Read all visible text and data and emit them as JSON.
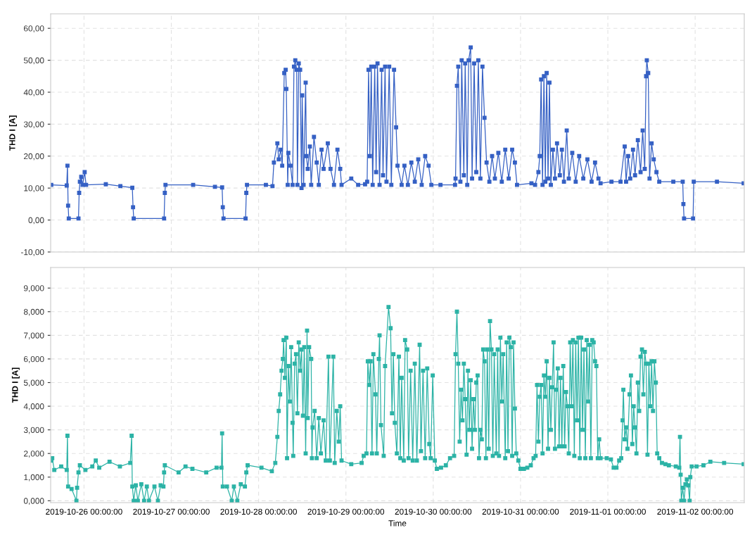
{
  "chart_data": [
    {
      "type": "line",
      "ylabel": "THD I [A]",
      "xlim": [
        "2019-10-25T14:50",
        "2019-11-02T13:30"
      ],
      "ylim": [
        -10,
        64.5
      ],
      "yticks": [
        {
          "value": -10,
          "label": "-10,00"
        },
        {
          "value": 0,
          "label": "0,00"
        },
        {
          "value": 10,
          "label": "10,00"
        },
        {
          "value": 20,
          "label": "20,00"
        },
        {
          "value": 30,
          "label": "30,00"
        },
        {
          "value": 40,
          "label": "40,00"
        },
        {
          "value": 50,
          "label": "50,00"
        },
        {
          "value": 60,
          "label": "60,00"
        }
      ],
      "xticks": [
        {
          "value": "2019-10-26",
          "label": null
        },
        {
          "value": "2019-10-27",
          "label": null
        },
        {
          "value": "2019-10-28",
          "label": null
        },
        {
          "value": "2019-10-29",
          "label": null
        },
        {
          "value": "2019-10-30",
          "label": null
        },
        {
          "value": "2019-10-31",
          "label": null
        },
        {
          "value": "2019-11-01",
          "label": null
        },
        {
          "value": "2019-11-02",
          "label": null
        }
      ],
      "tick_labels": "y",
      "grid": true,
      "marker": "square",
      "line_style": "solid",
      "series": [
        {
          "color": "#3560c4",
          "x": [
            "2019-10-25T15:00",
            "2019-10-25T19:15",
            "2019-10-25T19:27",
            "2019-10-25T19:38",
            "2019-10-25T19:49",
            "2019-10-25T22:29",
            "2019-10-25T22:40",
            "2019-10-25T22:52",
            "2019-10-25T23:14",
            "2019-10-25T23:37",
            "2019-10-26T00:11",
            "2019-10-26T00:34",
            "2019-10-26T06:00",
            "2019-10-26T10:00",
            "2019-10-26T13:17",
            "2019-10-26T13:29",
            "2019-10-26T13:40",
            "2019-10-26T22:01",
            "2019-10-26T22:13",
            "2019-10-26T22:24",
            "2019-10-27T06:00",
            "2019-10-27T12:00",
            "2019-10-27T13:58",
            "2019-10-27T14:09",
            "2019-10-27T14:21",
            "2019-10-27T20:25",
            "2019-10-27T20:37",
            "2019-10-27T20:48",
            "2019-10-28T02:00",
            "2019-10-28T03:49",
            "2019-10-28T04:12",
            "2019-10-28T05:09",
            "2019-10-28T05:32",
            "2019-10-28T06:06",
            "2019-10-28T06:29",
            "2019-10-28T07:03",
            "2019-10-28T07:26",
            "2019-10-28T07:37",
            "2019-10-28T08:00",
            "2019-10-28T08:11",
            "2019-10-28T08:46",
            "2019-10-28T09:20",
            "2019-10-28T09:43",
            "2019-10-28T10:05",
            "2019-10-28T10:28",
            "2019-10-28T10:40",
            "2019-10-28T11:02",
            "2019-10-28T11:25",
            "2019-10-28T11:48",
            "2019-10-28T11:59",
            "2019-10-28T12:22",
            "2019-10-28T12:56",
            "2019-10-28T13:08",
            "2019-10-28T13:30",
            "2019-10-28T14:05",
            "2019-10-28T14:27",
            "2019-10-28T15:13",
            "2019-10-28T15:58",
            "2019-10-28T16:33",
            "2019-10-28T17:18",
            "2019-10-28T17:52",
            "2019-10-28T19:01",
            "2019-10-28T19:46",
            "2019-10-28T20:43",
            "2019-10-28T21:40",
            "2019-10-28T22:26",
            "2019-10-28T22:48",
            "2019-10-29T01:28",
            "2019-10-29T03:22",
            "2019-10-29T05:16",
            "2019-10-29T05:50",
            "2019-10-29T06:13",
            "2019-10-29T06:35",
            "2019-10-29T06:58",
            "2019-10-29T07:21",
            "2019-10-29T07:55",
            "2019-10-29T08:18",
            "2019-10-29T08:41",
            "2019-10-29T09:15",
            "2019-10-29T09:49",
            "2019-10-29T10:12",
            "2019-10-29T10:46",
            "2019-10-29T11:09",
            "2019-10-29T11:54",
            "2019-10-29T12:29",
            "2019-10-29T13:14",
            "2019-10-29T13:48",
            "2019-10-29T14:11",
            "2019-10-29T15:19",
            "2019-10-29T16:05",
            "2019-10-29T17:02",
            "2019-10-29T17:59",
            "2019-10-29T18:56",
            "2019-10-29T19:53",
            "2019-10-29T20:50",
            "2019-10-29T21:47",
            "2019-10-29T22:44",
            "2019-10-29T23:29",
            "2019-10-30T02:00",
            "2019-10-30T06:00",
            "2019-10-30T06:08",
            "2019-10-30T06:31",
            "2019-10-30T06:53",
            "2019-10-30T07:28",
            "2019-10-30T07:50",
            "2019-10-30T08:25",
            "2019-10-30T08:47",
            "2019-10-30T09:21",
            "2019-10-30T09:44",
            "2019-10-30T10:18",
            "2019-10-30T10:41",
            "2019-10-30T11:15",
            "2019-10-30T11:50",
            "2019-10-30T12:24",
            "2019-10-30T12:58",
            "2019-10-30T13:32",
            "2019-10-30T14:06",
            "2019-10-30T14:40",
            "2019-10-30T15:26",
            "2019-10-30T16:11",
            "2019-10-30T16:57",
            "2019-10-30T17:54",
            "2019-10-30T18:51",
            "2019-10-30T19:48",
            "2019-10-30T20:45",
            "2019-10-30T21:42",
            "2019-10-30T22:27",
            "2019-10-30T23:02",
            "2019-10-31T03:00",
            "2019-10-31T04:00",
            "2019-10-31T04:55",
            "2019-10-31T05:17",
            "2019-10-31T05:40",
            "2019-10-31T06:03",
            "2019-10-31T06:26",
            "2019-10-31T06:49",
            "2019-10-31T07:11",
            "2019-10-31T07:34",
            "2019-10-31T07:57",
            "2019-10-31T08:20",
            "2019-10-31T08:54",
            "2019-10-31T09:28",
            "2019-10-31T10:02",
            "2019-10-31T10:48",
            "2019-10-31T11:22",
            "2019-10-31T11:56",
            "2019-10-31T12:42",
            "2019-10-31T13:16",
            "2019-10-31T14:13",
            "2019-10-31T15:10",
            "2019-10-31T16:07",
            "2019-10-31T17:15",
            "2019-10-31T18:23",
            "2019-10-31T19:32",
            "2019-10-31T20:29",
            "2019-10-31T21:25",
            "2019-10-31T22:00",
            "2019-11-01T01:00",
            "2019-11-01T03:30",
            "2019-11-01T04:38",
            "2019-11-01T05:01",
            "2019-11-01T05:35",
            "2019-11-01T06:09",
            "2019-11-01T06:55",
            "2019-11-01T07:29",
            "2019-11-01T08:15",
            "2019-11-01T09:00",
            "2019-11-01T09:34",
            "2019-11-01T10:09",
            "2019-11-01T10:31",
            "2019-11-01T10:43",
            "2019-11-01T11:06",
            "2019-11-01T11:28",
            "2019-11-01T12:02",
            "2019-11-01T12:37",
            "2019-11-01T13:22",
            "2019-11-01T14:08",
            "2019-11-01T18:00",
            "2019-11-01T20:35",
            "2019-11-01T20:46",
            "2019-11-01T20:57",
            "2019-11-01T23:26",
            "2019-11-01T23:37",
            "2019-11-02T06:00",
            "2019-11-02T13:20"
          ],
          "values": [
            11,
            10.8,
            17,
            4.5,
            0.5,
            0.5,
            8.5,
            12,
            13.5,
            11,
            15,
            11,
            11.2,
            10.6,
            10.1,
            4,
            0.5,
            0.5,
            8.5,
            11,
            11,
            10.4,
            10.2,
            4,
            0.5,
            0.5,
            8.5,
            11,
            11,
            10.6,
            18,
            24,
            19,
            22,
            17,
            46,
            47,
            41,
            11,
            21,
            17,
            11,
            48,
            50,
            47,
            11,
            49,
            47,
            10,
            39,
            11,
            43,
            20,
            16,
            23,
            11,
            26,
            18,
            11,
            22,
            16,
            24,
            16,
            11,
            22,
            16,
            11,
            13,
            11,
            11.2,
            12,
            47,
            20,
            48,
            11,
            48,
            15,
            49,
            11,
            47,
            14,
            48,
            12,
            48,
            11,
            47,
            29,
            17,
            11,
            17,
            11,
            18,
            12,
            19,
            11,
            20,
            17,
            11,
            11,
            11,
            13,
            42,
            48,
            12,
            50,
            14,
            49,
            11,
            50,
            54,
            13,
            49,
            15,
            50,
            13,
            48,
            32,
            18,
            12,
            20,
            13,
            21,
            12,
            22,
            13,
            22,
            18,
            11,
            11.5,
            11,
            15,
            20,
            44,
            11,
            45,
            12,
            46,
            13,
            43,
            11,
            22,
            13,
            24,
            14,
            22,
            12,
            28,
            13,
            21,
            12,
            20,
            13,
            19,
            12,
            18,
            13,
            11.5,
            12,
            12,
            23,
            12,
            20,
            13,
            22,
            14,
            25,
            15,
            28,
            16,
            45,
            50,
            46,
            13,
            24,
            19,
            15,
            12,
            12,
            12,
            5,
            0.5,
            0.5,
            12,
            12,
            11.5
          ]
        }
      ]
    },
    {
      "type": "line",
      "ylabel": "THD I [A]",
      "xlabel": "Time",
      "xlim": [
        "2019-10-25T14:50",
        "2019-11-02T13:30"
      ],
      "ylim": [
        -0.08,
        9.87
      ],
      "yticks": [
        {
          "value": 0,
          "label": "0,000"
        },
        {
          "value": 1,
          "label": "1,000"
        },
        {
          "value": 2,
          "label": "2,000"
        },
        {
          "value": 3,
          "label": "3,000"
        },
        {
          "value": 4,
          "label": "4,000"
        },
        {
          "value": 5,
          "label": "5,000"
        },
        {
          "value": 6,
          "label": "6,000"
        },
        {
          "value": 7,
          "label": "7,000"
        },
        {
          "value": 8,
          "label": "8,000"
        },
        {
          "value": 9,
          "label": "9,000"
        }
      ],
      "xticks": [
        {
          "value": "2019-10-26",
          "label": "2019-10-26 00:00:00"
        },
        {
          "value": "2019-10-27",
          "label": "2019-10-27 00:00:00"
        },
        {
          "value": "2019-10-28",
          "label": "2019-10-28 00:00:00"
        },
        {
          "value": "2019-10-29",
          "label": "2019-10-29 00:00:00"
        },
        {
          "value": "2019-10-30",
          "label": "2019-10-30 00:00:00"
        },
        {
          "value": "2019-10-31",
          "label": "2019-10-31 00:00:00"
        },
        {
          "value": "2019-11-01",
          "label": "2019-11-01 00:00:00"
        },
        {
          "value": "2019-11-02",
          "label": "2019-11-02 00:00:00"
        }
      ],
      "grid": true,
      "marker": "square",
      "line_style": "solid",
      "series": [
        {
          "color": "#2cb3a6",
          "x": [
            "2019-10-25T15:00",
            "2019-10-25T15:16",
            "2019-10-25T15:50",
            "2019-10-25T17:44",
            "2019-10-25T19:15",
            "2019-10-25T19:27",
            "2019-10-25T19:38",
            "2019-10-25T20:35",
            "2019-10-25T21:55",
            "2019-10-25T22:06",
            "2019-10-25T22:29",
            "2019-10-25T22:52",
            "2019-10-26T00:23",
            "2019-10-26T02:17",
            "2019-10-26T03:14",
            "2019-10-26T04:11",
            "2019-10-26T07:01",
            "2019-10-26T09:52",
            "2019-10-26T12:43",
            "2019-10-26T13:06",
            "2019-10-26T13:17",
            "2019-10-26T13:40",
            "2019-10-26T14:14",
            "2019-10-26T14:48",
            "2019-10-26T15:45",
            "2019-10-26T16:31",
            "2019-10-26T17:16",
            "2019-10-26T17:51",
            "2019-10-26T19:22",
            "2019-10-26T20:19",
            "2019-10-26T21:04",
            "2019-10-26T21:50",
            "2019-10-26T22:01",
            "2019-10-26T22:13",
            "2019-10-27T02:00",
            "2019-10-27T03:54",
            "2019-10-27T05:48",
            "2019-10-27T09:36",
            "2019-10-27T12:27",
            "2019-10-27T13:47",
            "2019-10-27T13:58",
            "2019-10-27T14:09",
            "2019-10-27T15:18",
            "2019-10-27T16:37",
            "2019-10-27T17:12",
            "2019-10-27T18:09",
            "2019-10-27T19:06",
            "2019-10-27T20:14",
            "2019-10-27T20:37",
            "2019-10-27T20:59",
            "2019-10-28T00:47",
            "2019-10-28T03:38",
            "2019-10-28T04:35",
            "2019-10-28T05:09",
            "2019-10-28T05:32",
            "2019-10-28T05:55",
            "2019-10-28T06:18",
            "2019-10-28T06:40",
            "2019-10-28T06:52",
            "2019-10-28T07:14",
            "2019-10-28T07:37",
            "2019-10-28T07:49",
            "2019-10-28T08:11",
            "2019-10-28T08:34",
            "2019-10-28T08:57",
            "2019-10-28T09:20",
            "2019-10-28T09:31",
            "2019-10-28T09:54",
            "2019-10-28T10:17",
            "2019-10-28T10:40",
            "2019-10-28T11:02",
            "2019-10-28T11:25",
            "2019-10-28T11:48",
            "2019-10-28T12:11",
            "2019-10-28T12:33",
            "2019-10-28T12:56",
            "2019-10-28T13:19",
            "2019-10-28T13:30",
            "2019-10-28T13:53",
            "2019-10-28T14:27",
            "2019-10-28T14:39",
            "2019-10-28T14:50",
            "2019-10-28T15:24",
            "2019-10-28T15:58",
            "2019-10-28T16:33",
            "2019-10-28T17:07",
            "2019-10-28T17:52",
            "2019-10-28T18:27",
            "2019-10-28T19:12",
            "2019-10-28T19:35",
            "2019-10-28T20:32",
            "2019-10-28T20:55",
            "2019-10-28T21:29",
            "2019-10-28T22:03",
            "2019-10-28T22:26",
            "2019-10-28T22:48",
            "2019-10-29T01:28",
            "2019-10-29T04:19",
            "2019-10-29T04:53",
            "2019-10-29T05:39",
            "2019-10-29T06:01",
            "2019-10-29T06:24",
            "2019-10-29T06:47",
            "2019-10-29T07:10",
            "2019-10-29T07:33",
            "2019-10-29T08:07",
            "2019-10-29T08:29",
            "2019-10-29T09:03",
            "2019-10-29T09:15",
            "2019-10-29T09:38",
            "2019-10-29T10:23",
            "2019-10-29T10:46",
            "2019-10-29T11:43",
            "2019-10-29T12:17",
            "2019-10-29T12:40",
            "2019-10-29T13:03",
            "2019-10-29T13:26",
            "2019-10-29T14:00",
            "2019-10-29T14:34",
            "2019-10-29T14:57",
            "2019-10-29T15:19",
            "2019-10-29T15:54",
            "2019-10-29T16:16",
            "2019-10-29T16:51",
            "2019-10-29T17:13",
            "2019-10-29T17:47",
            "2019-10-29T18:22",
            "2019-10-29T18:56",
            "2019-10-29T19:30",
            "2019-10-29T20:16",
            "2019-10-29T20:38",
            "2019-10-29T21:12",
            "2019-10-29T21:47",
            "2019-10-29T22:21",
            "2019-10-29T22:55",
            "2019-10-29T23:18",
            "2019-10-29T23:52",
            "2019-10-30T00:26",
            "2019-10-30T01:00",
            "2019-10-30T02:09",
            "2019-10-30T03:28",
            "2019-10-30T04:37",
            "2019-10-30T05:45",
            "2019-10-30T06:08",
            "2019-10-30T06:31",
            "2019-10-30T06:53",
            "2019-10-30T07:16",
            "2019-10-30T07:39",
            "2019-10-30T08:02",
            "2019-10-30T08:25",
            "2019-10-30T08:47",
            "2019-10-30T09:10",
            "2019-10-30T09:33",
            "2019-10-30T09:56",
            "2019-10-30T10:18",
            "2019-10-30T10:41",
            "2019-10-30T11:04",
            "2019-10-30T11:27",
            "2019-10-30T11:50",
            "2019-10-30T12:12",
            "2019-10-30T12:35",
            "2019-10-30T12:58",
            "2019-10-30T13:21",
            "2019-10-30T13:44",
            "2019-10-30T14:06",
            "2019-10-30T14:29",
            "2019-10-30T14:52",
            "2019-10-30T15:15",
            "2019-10-30T15:37",
            "2019-10-30T16:00",
            "2019-10-30T16:23",
            "2019-10-30T16:46",
            "2019-10-30T17:20",
            "2019-10-30T17:43",
            "2019-10-30T18:05",
            "2019-10-30T18:28",
            "2019-10-30T18:51",
            "2019-10-30T19:14",
            "2019-10-30T19:48",
            "2019-10-30T20:11",
            "2019-10-30T20:33",
            "2019-10-30T20:56",
            "2019-10-30T21:19",
            "2019-10-30T21:42",
            "2019-10-30T22:05",
            "2019-10-30T22:27",
            "2019-10-30T22:50",
            "2019-10-30T23:24",
            "2019-10-30T23:59",
            "2019-10-31T00:56",
            "2019-10-31T01:52",
            "2019-10-31T02:49",
            "2019-10-31T03:35",
            "2019-10-31T04:09",
            "2019-10-31T04:32",
            "2019-10-31T04:55",
            "2019-10-31T05:17",
            "2019-10-31T05:40",
            "2019-10-31T06:03",
            "2019-10-31T06:26",
            "2019-10-31T06:49",
            "2019-10-31T07:11",
            "2019-10-31T07:34",
            "2019-10-31T07:57",
            "2019-10-31T08:20",
            "2019-10-31T08:42",
            "2019-10-31T09:05",
            "2019-10-31T09:28",
            "2019-10-31T09:51",
            "2019-10-31T10:14",
            "2019-10-31T10:36",
            "2019-10-31T10:59",
            "2019-10-31T11:22",
            "2019-10-31T11:45",
            "2019-10-31T12:07",
            "2019-10-31T12:30",
            "2019-10-31T12:53",
            "2019-10-31T13:16",
            "2019-10-31T13:39",
            "2019-10-31T14:01",
            "2019-10-31T14:24",
            "2019-10-31T14:47",
            "2019-10-31T15:10",
            "2019-10-31T15:32",
            "2019-10-31T15:55",
            "2019-10-31T16:18",
            "2019-10-31T16:41",
            "2019-10-31T17:03",
            "2019-10-31T17:26",
            "2019-10-31T17:49",
            "2019-10-31T18:12",
            "2019-10-31T18:35",
            "2019-10-31T18:57",
            "2019-10-31T19:20",
            "2019-10-31T19:43",
            "2019-10-31T20:06",
            "2019-10-31T20:29",
            "2019-10-31T20:51",
            "2019-10-31T21:14",
            "2019-10-31T21:37",
            "2019-10-31T22:00",
            "2019-10-31T23:42",
            "2019-11-01T00:51",
            "2019-11-01T01:36",
            "2019-11-01T02:22",
            "2019-11-01T03:07",
            "2019-11-01T03:41",
            "2019-11-01T04:04",
            "2019-11-01T04:16",
            "2019-11-01T04:38",
            "2019-11-01T05:01",
            "2019-11-01T05:24",
            "2019-11-01T05:58",
            "2019-11-01T06:21",
            "2019-11-01T06:44",
            "2019-11-01T07:06",
            "2019-11-01T07:29",
            "2019-11-01T07:52",
            "2019-11-01T08:15",
            "2019-11-01T08:37",
            "2019-11-01T09:00",
            "2019-11-01T09:23",
            "2019-11-01T09:46",
            "2019-11-01T10:09",
            "2019-11-01T10:31",
            "2019-11-01T10:54",
            "2019-11-01T11:17",
            "2019-11-01T11:40",
            "2019-11-01T12:02",
            "2019-11-01T12:25",
            "2019-11-01T12:48",
            "2019-11-01T13:11",
            "2019-11-01T13:34",
            "2019-11-01T14:08",
            "2019-11-01T14:53",
            "2019-11-01T15:50",
            "2019-11-01T16:47",
            "2019-11-01T18:41",
            "2019-11-01T19:38",
            "2019-11-01T19:50",
            "2019-11-01T20:01",
            "2019-11-01T20:12",
            "2019-11-01T20:35",
            "2019-11-01T20:58",
            "2019-11-01T21:20",
            "2019-11-01T21:43",
            "2019-11-01T22:06",
            "2019-11-01T22:29",
            "2019-11-01T22:40",
            "2019-11-01T23:03",
            "2019-11-02T00:23",
            "2019-11-02T02:17",
            "2019-11-02T04:11",
            "2019-11-02T07:58",
            "2019-11-02T13:20"
          ],
          "values": [
            1.7,
            1.8,
            1.3,
            1.45,
            1.3,
            2.75,
            0.6,
            0.5,
            0.0,
            0.55,
            1.2,
            1.5,
            1.3,
            1.45,
            1.7,
            1.4,
            1.65,
            1.45,
            1.6,
            2.75,
            0.6,
            0.0,
            0.65,
            0.0,
            0.7,
            0.0,
            0.6,
            0.0,
            0.6,
            0.0,
            0.65,
            0.6,
            1.2,
            1.5,
            1.2,
            1.45,
            1.35,
            1.2,
            1.4,
            1.4,
            2.85,
            0.6,
            0.6,
            0.0,
            0.6,
            0.0,
            0.7,
            0.6,
            1.2,
            1.5,
            1.4,
            1.25,
            1.6,
            2.7,
            3.8,
            4.5,
            5.5,
            6.0,
            6.8,
            5.2,
            6.9,
            1.8,
            5.7,
            4.2,
            6.5,
            3.3,
            1.9,
            5.8,
            6.2,
            3.7,
            6.7,
            5.5,
            6.4,
            3.6,
            6.5,
            2.0,
            7.2,
            3.5,
            6.5,
            6.0,
            1.8,
            3.1,
            3.8,
            1.8,
            3.5,
            2.0,
            3.4,
            1.7,
            6.1,
            1.7,
            6.1,
            1.6,
            3.8,
            2.5,
            4.0,
            1.7,
            1.55,
            1.6,
            1.9,
            2.0,
            5.9,
            4.9,
            5.9,
            2.0,
            6.2,
            4.5,
            2.0,
            6.0,
            7.0,
            3.2,
            1.9,
            5.7,
            8.2,
            7.3,
            3.7,
            6.2,
            3.3,
            2.0,
            6.1,
            1.8,
            5.2,
            1.7,
            6.8,
            6.4,
            1.8,
            5.5,
            1.7,
            5.8,
            1.7,
            6.6,
            2.1,
            5.5,
            1.8,
            5.6,
            2.4,
            1.8,
            5.3,
            1.7,
            1.35,
            1.4,
            1.5,
            1.8,
            1.9,
            6.2,
            8.0,
            5.8,
            2.5,
            4.7,
            3.4,
            5.8,
            4.3,
            1.95,
            5.5,
            3.0,
            5.1,
            2.2,
            4.3,
            3.0,
            5.0,
            5.3,
            1.8,
            3.0,
            2.6,
            6.4,
            5.9,
            1.8,
            6.4,
            2.2,
            7.6,
            6.4,
            1.9,
            6.2,
            2.0,
            6.4,
            1.9,
            6.9,
            4.2,
            6.2,
            1.8,
            6.7,
            2.1,
            6.9,
            6.5,
            1.9,
            6.7,
            3.9,
            2.0,
            1.7,
            1.35,
            1.35,
            1.4,
            1.5,
            1.8,
            1.9,
            4.9,
            2.5,
            4.4,
            4.9,
            2.0,
            5.3,
            4.4,
            5.9,
            2.2,
            5.2,
            3.0,
            4.8,
            6.7,
            2.2,
            4.7,
            5.6,
            2.3,
            5.2,
            2.3,
            5.7,
            2.3,
            4.6,
            4.0,
            2.0,
            6.7,
            4.0,
            6.8,
            1.9,
            6.7,
            3.4,
            6.9,
            1.8,
            6.9,
            3.0,
            6.4,
            1.8,
            6.8,
            4.2,
            6.6,
            1.8,
            6.8,
            6.7,
            5.9,
            5.7,
            1.8,
            2.6,
            1.8,
            1.8,
            1.75,
            1.4,
            1.4,
            1.7,
            1.8,
            3.4,
            4.7,
            2.6,
            3.1,
            2.2,
            4.5,
            5.3,
            2.4,
            4.0,
            3.1,
            2.0,
            5.0,
            3.8,
            6.1,
            6.4,
            4.5,
            6.3,
            5.8,
            1.95,
            5.8,
            4.0,
            5.9,
            3.8,
            5.9,
            5.0,
            2.0,
            1.8,
            1.6,
            1.55,
            1.5,
            1.45,
            1.4,
            2.7,
            1.1,
            0.0,
            0.55,
            0.0,
            0.7,
            0.9,
            0.65,
            0.0,
            1.0,
            1.45,
            1.45,
            1.5,
            1.65,
            1.6,
            1.55
          ]
        }
      ]
    }
  ]
}
